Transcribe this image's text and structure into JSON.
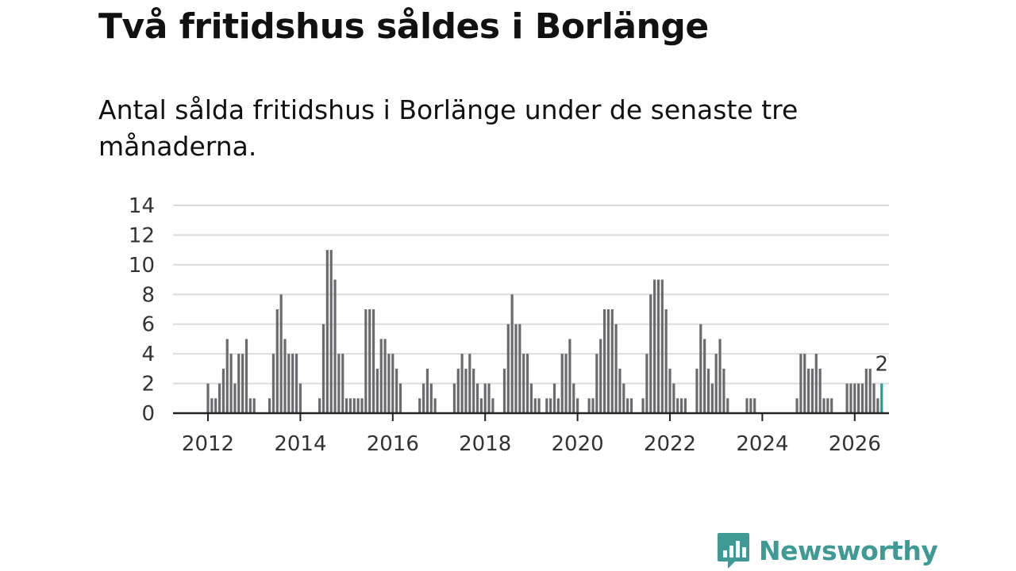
{
  "title": "Två fritidshus såldes i Borlänge",
  "subtitle": "Antal sålda fritidshus i Borlänge under de senaste tre månaderna.",
  "brand": {
    "name": "Newsworthy",
    "color": "#3f9a96",
    "icon": "newsworthy-chart-bubble-icon"
  },
  "colors": {
    "bar": "#6b6b6f",
    "highlight": "#1aa39b",
    "grid": "#dcdcdc",
    "axis": "#222222"
  },
  "chart_data": {
    "type": "bar",
    "title": "Antal sålda fritidshus i Borlänge",
    "xlabel": "",
    "ylabel": "",
    "x_start": "2012-01",
    "x_step": "month",
    "ylim": [
      0,
      14
    ],
    "yticks": [
      0,
      2,
      4,
      6,
      8,
      10,
      12,
      14
    ],
    "xticks": [
      "2012",
      "2014",
      "2016",
      "2018",
      "2020",
      "2022",
      "2024",
      "2026"
    ],
    "values": [
      2,
      1,
      1,
      2,
      3,
      5,
      4,
      2,
      4,
      4,
      5,
      1,
      1,
      0,
      0,
      0,
      1,
      4,
      7,
      8,
      5,
      4,
      4,
      4,
      2,
      0,
      0,
      0,
      0,
      1,
      6,
      11,
      11,
      9,
      4,
      4,
      1,
      1,
      1,
      1,
      1,
      7,
      7,
      7,
      3,
      5,
      5,
      4,
      4,
      3,
      2,
      0,
      0,
      0,
      0,
      1,
      2,
      3,
      2,
      1,
      0,
      0,
      0,
      0,
      2,
      3,
      4,
      3,
      4,
      3,
      2,
      1,
      2,
      2,
      1,
      0,
      0,
      3,
      6,
      8,
      6,
      6,
      4,
      4,
      2,
      1,
      1,
      0,
      1,
      1,
      2,
      1,
      4,
      4,
      5,
      2,
      1,
      0,
      0,
      1,
      1,
      4,
      5,
      7,
      7,
      7,
      6,
      3,
      2,
      1,
      1,
      0,
      0,
      1,
      4,
      8,
      9,
      9,
      9,
      7,
      3,
      2,
      1,
      1,
      1,
      0,
      0,
      3,
      6,
      5,
      3,
      2,
      4,
      5,
      3,
      1,
      0,
      0,
      0,
      0,
      1,
      1,
      1,
      0,
      0,
      0,
      0,
      0,
      0,
      0,
      0,
      0,
      0,
      1,
      4,
      4,
      3,
      3,
      4,
      3,
      1,
      1,
      1,
      0,
      0,
      0,
      2,
      2,
      2,
      2,
      2,
      3,
      3,
      2,
      1,
      2
    ],
    "highlight_label": "2"
  }
}
